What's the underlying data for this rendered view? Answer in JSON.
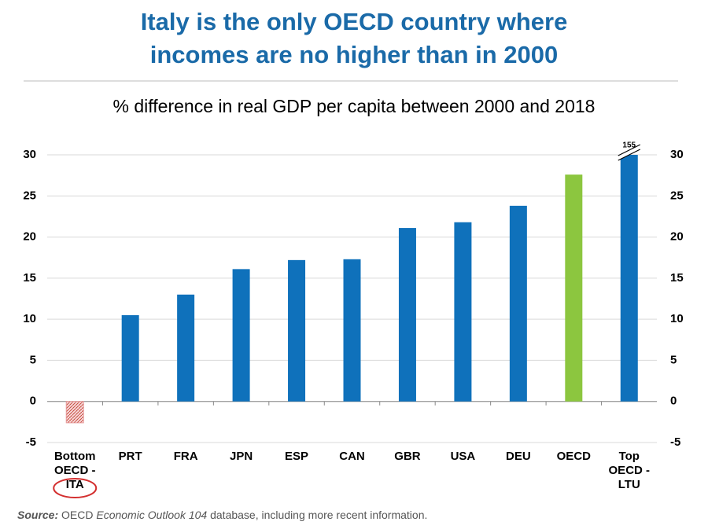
{
  "chart_data": {
    "type": "bar",
    "title": [
      "Italy is the only OECD country where",
      "incomes are no higher than in 2000"
    ],
    "subtitle": "% difference in real GDP per capita between 2000 and 2018",
    "categories": [
      "Bottom\nOECD -\nITA",
      "PRT",
      "FRA",
      "JPN",
      "ESP",
      "CAN",
      "GBR",
      "USA",
      "DEU",
      "OECD",
      "Top\nOECD -\nLTU"
    ],
    "values": [
      -2.6,
      10.5,
      13,
      16.1,
      17.2,
      17.3,
      21.1,
      21.8,
      23.8,
      27.6,
      155
    ],
    "value_labels": [
      null,
      null,
      null,
      null,
      null,
      null,
      null,
      null,
      null,
      null,
      "155"
    ],
    "colors": [
      "#e79a9a",
      "#0f71bb",
      "#0f71bb",
      "#0f71bb",
      "#0f71bb",
      "#0f71bb",
      "#0f71bb",
      "#0f71bb",
      "#0f71bb",
      "#8cc63f",
      "#0f71bb"
    ],
    "ylim": [
      -5,
      30
    ],
    "yticks": [
      -5,
      0,
      5,
      10,
      15,
      20,
      25,
      30
    ],
    "y2lim": [
      -5,
      30
    ],
    "y2ticks": [
      -5,
      0,
      5,
      10,
      15,
      20,
      25,
      30
    ],
    "grid": true,
    "source": {
      "label": "Source:",
      "parts": [
        "OECD ",
        "Economic Outlook 104",
        " database, including more recent information."
      ]
    }
  }
}
